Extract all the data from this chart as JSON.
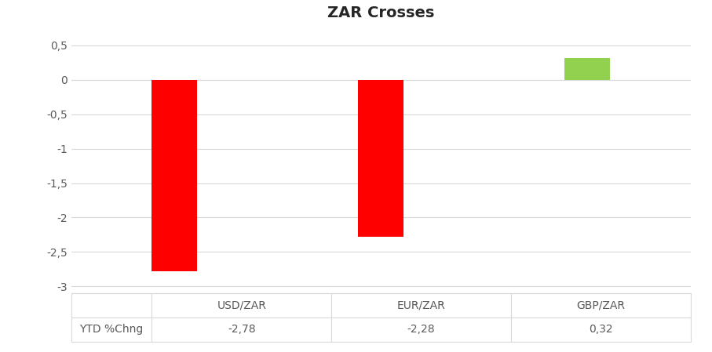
{
  "title": "ZAR Crosses",
  "categories": [
    "USD/ZAR",
    "EUR/ZAR",
    "GBP/ZAR"
  ],
  "values": [
    -2.78,
    -2.28,
    0.32
  ],
  "bar_colors": [
    "#ff0000",
    "#ff0000",
    "#92d050"
  ],
  "ylim": [
    -3.1,
    0.75
  ],
  "yticks": [
    -3.0,
    -2.5,
    -2.0,
    -1.5,
    -1.0,
    -0.5,
    0.0,
    0.5
  ],
  "ytick_labels": [
    "-3",
    "-2,5",
    "-2",
    "-1,5",
    "-1",
    "-0,5",
    "0",
    "0,5"
  ],
  "table_row_label": "YTD %Chng",
  "table_values": [
    "-2,78",
    "-2,28",
    "0,32"
  ],
  "background_color": "#ffffff",
  "grid_color": "#d9d9d9",
  "title_fontsize": 14,
  "tick_fontsize": 10,
  "table_fontsize": 10,
  "bar_width": 0.22
}
